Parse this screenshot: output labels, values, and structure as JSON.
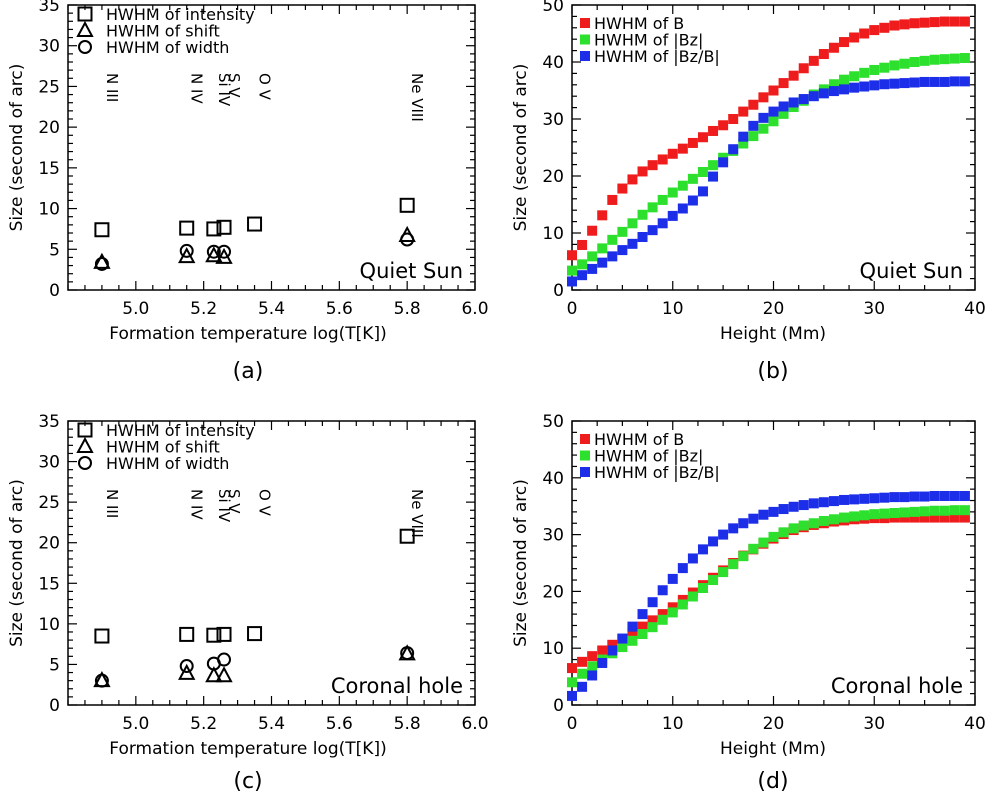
{
  "chart_data": [
    {
      "id": "a",
      "type": "scatter",
      "panel_label": "(a)",
      "xlabel": "Formation temperature log(T[K])",
      "ylabel": "Size (second of arc)",
      "xlim": [
        4.8,
        6.0
      ],
      "ylim": [
        0,
        35
      ],
      "xticks": [
        "5.0",
        "5.2",
        "5.4",
        "5.6",
        "5.8",
        "6.0"
      ],
      "yticks": [
        "0",
        "5",
        "10",
        "15",
        "20",
        "25",
        "30",
        "35"
      ],
      "annotation": "Quiet Sun",
      "legend_position": "top-left",
      "legend": [
        {
          "marker": "square",
          "label": "HWHM of intensity"
        },
        {
          "marker": "triangle",
          "label": "HWHM of shift"
        },
        {
          "marker": "circle",
          "label": "HWHM of width"
        }
      ],
      "lines": [
        {
          "label": "N III",
          "x": 4.9
        },
        {
          "label": "N IV",
          "x": 5.15
        },
        {
          "label": "Si IV",
          "x": 5.23
        },
        {
          "label": "S V",
          "x": 5.26
        },
        {
          "label": "O V",
          "x": 5.35
        },
        {
          "label": "Ne VIII",
          "x": 5.8
        }
      ],
      "series": [
        {
          "marker": "square",
          "x": [
            4.9,
            5.15,
            5.23,
            5.26,
            5.35,
            5.8
          ],
          "values": [
            7.4,
            7.6,
            7.5,
            7.7,
            8.1,
            10.4
          ]
        },
        {
          "marker": "triangle",
          "x": [
            4.9,
            5.15,
            5.23,
            5.26,
            5.8
          ],
          "values": [
            3.4,
            4.1,
            4.2,
            4.0,
            6.7
          ]
        },
        {
          "marker": "circle",
          "x": [
            4.9,
            5.15,
            5.23,
            5.26,
            5.8
          ],
          "values": [
            3.2,
            4.8,
            4.7,
            4.7,
            6.2
          ]
        }
      ]
    },
    {
      "id": "b",
      "type": "scatter",
      "panel_label": "(b)",
      "xlabel": "Height (Mm)",
      "ylabel": "Size (second of arc)",
      "xlim": [
        0,
        40
      ],
      "ylim": [
        0,
        50
      ],
      "xticks": [
        "0",
        "10",
        "20",
        "30",
        "40"
      ],
      "yticks": [
        "0",
        "10",
        "20",
        "30",
        "40",
        "50"
      ],
      "annotation": "Quiet Sun",
      "legend_position": "top-left",
      "series": [
        {
          "name": "HWHM of B",
          "color": "#ee1c1c",
          "x": [
            0,
            1,
            2,
            3,
            4,
            5,
            6,
            7,
            8,
            9,
            10,
            11,
            12,
            13,
            14,
            15,
            16,
            17,
            18,
            19,
            20,
            21,
            22,
            23,
            24,
            25,
            26,
            27,
            28,
            29,
            30,
            31,
            32,
            33,
            34,
            35,
            36,
            37,
            38,
            39
          ],
          "values": [
            6.1,
            7.9,
            10.4,
            13.1,
            15.8,
            17.8,
            19.4,
            20.8,
            21.9,
            22.9,
            23.9,
            24.8,
            25.8,
            26.8,
            27.9,
            28.9,
            30.0,
            31.3,
            32.5,
            33.8,
            35.0,
            36.3,
            37.6,
            38.9,
            40.2,
            41.4,
            42.5,
            43.5,
            44.3,
            45.0,
            45.6,
            46.0,
            46.4,
            46.6,
            46.8,
            46.9,
            47.0,
            47.1,
            47.1,
            47.1
          ]
        },
        {
          "name": "HWHM of |Bz|",
          "color": "#2ee02e",
          "x": [
            0,
            1,
            2,
            3,
            4,
            5,
            6,
            7,
            8,
            9,
            10,
            11,
            12,
            13,
            14,
            15,
            16,
            17,
            18,
            19,
            20,
            21,
            22,
            23,
            24,
            25,
            26,
            27,
            28,
            29,
            30,
            31,
            32,
            33,
            34,
            35,
            36,
            37,
            38,
            39
          ],
          "values": [
            3.4,
            4.5,
            5.9,
            7.3,
            8.8,
            10.2,
            11.7,
            13.2,
            14.5,
            15.8,
            17.1,
            18.3,
            19.5,
            20.7,
            21.9,
            23.2,
            24.4,
            25.7,
            27.0,
            28.3,
            29.6,
            30.9,
            32.1,
            33.2,
            34.3,
            35.2,
            36.1,
            36.9,
            37.5,
            38.1,
            38.6,
            39.0,
            39.4,
            39.7,
            40.0,
            40.2,
            40.4,
            40.5,
            40.6,
            40.7
          ]
        },
        {
          "name": "HWHM of |Bz/B|",
          "color": "#1c2ee8",
          "x": [
            0,
            1,
            2,
            3,
            4,
            5,
            6,
            7,
            8,
            9,
            10,
            11,
            12,
            13,
            14,
            15,
            16,
            17,
            18,
            19,
            20,
            21,
            22,
            23,
            24,
            25,
            26,
            27,
            28,
            29,
            30,
            31,
            32,
            33,
            34,
            35,
            36,
            37,
            38,
            39
          ],
          "values": [
            1.5,
            2.6,
            3.7,
            4.8,
            5.9,
            7.0,
            8.1,
            9.3,
            10.5,
            11.7,
            13.0,
            14.3,
            15.7,
            17.3,
            19.9,
            22.4,
            24.7,
            26.9,
            28.8,
            30.2,
            31.3,
            32.2,
            32.9,
            33.5,
            34.0,
            34.5,
            34.9,
            35.2,
            35.5,
            35.7,
            35.9,
            36.1,
            36.2,
            36.3,
            36.4,
            36.5,
            36.5,
            36.5,
            36.6,
            36.6
          ]
        }
      ]
    },
    {
      "id": "c",
      "type": "scatter",
      "panel_label": "(c)",
      "xlabel": "Formation temperature log(T[K])",
      "ylabel": "Size (second of arc)",
      "xlim": [
        4.8,
        6.0
      ],
      "ylim": [
        0,
        35
      ],
      "xticks": [
        "5.0",
        "5.2",
        "5.4",
        "5.6",
        "5.8",
        "6.0"
      ],
      "yticks": [
        "0",
        "5",
        "10",
        "15",
        "20",
        "25",
        "30",
        "35"
      ],
      "annotation": "Coronal hole",
      "legend_position": "top-left",
      "legend": [
        {
          "marker": "square",
          "label": "HWHM of intensity"
        },
        {
          "marker": "triangle",
          "label": "HWHM of shift"
        },
        {
          "marker": "circle",
          "label": "HWHM of width"
        }
      ],
      "lines": [
        {
          "label": "N III",
          "x": 4.9
        },
        {
          "label": "N IV",
          "x": 5.15
        },
        {
          "label": "Si IV",
          "x": 5.23
        },
        {
          "label": "S V",
          "x": 5.26
        },
        {
          "label": "O V",
          "x": 5.35
        },
        {
          "label": "Ne VIII",
          "x": 5.8
        }
      ],
      "series": [
        {
          "marker": "square",
          "x": [
            4.9,
            5.15,
            5.23,
            5.26,
            5.35,
            5.8
          ],
          "values": [
            8.5,
            8.7,
            8.6,
            8.7,
            8.8,
            20.8
          ]
        },
        {
          "marker": "triangle",
          "x": [
            4.9,
            5.15,
            5.23,
            5.26,
            5.8
          ],
          "values": [
            3.0,
            3.9,
            3.6,
            3.6,
            6.3
          ]
        },
        {
          "marker": "circle",
          "x": [
            4.9,
            5.15,
            5.23,
            5.26,
            5.8
          ],
          "values": [
            3.0,
            4.8,
            5.1,
            5.6,
            6.4
          ]
        }
      ]
    },
    {
      "id": "d",
      "type": "scatter",
      "panel_label": "(d)",
      "xlabel": "Height (Mm)",
      "ylabel": "Size (second of arc)",
      "xlim": [
        0,
        40
      ],
      "ylim": [
        0,
        50
      ],
      "xticks": [
        "0",
        "10",
        "20",
        "30",
        "40"
      ],
      "yticks": [
        "0",
        "10",
        "20",
        "30",
        "40",
        "50"
      ],
      "annotation": "Coronal hole",
      "legend_position": "top-left",
      "series": [
        {
          "name": "HWHM of B",
          "color": "#ee1c1c",
          "x": [
            0,
            1,
            2,
            3,
            4,
            5,
            6,
            7,
            8,
            9,
            10,
            11,
            12,
            13,
            14,
            15,
            16,
            17,
            18,
            19,
            20,
            21,
            22,
            23,
            24,
            25,
            26,
            27,
            28,
            29,
            30,
            31,
            32,
            33,
            34,
            35,
            36,
            37,
            38,
            39
          ],
          "values": [
            6.5,
            7.6,
            8.6,
            9.6,
            10.6,
            11.6,
            12.7,
            13.8,
            14.9,
            16.0,
            17.2,
            18.5,
            19.8,
            21.1,
            22.4,
            23.7,
            25.0,
            26.3,
            27.4,
            28.4,
            29.3,
            30.1,
            30.8,
            31.3,
            31.7,
            32.0,
            32.3,
            32.5,
            32.7,
            32.8,
            32.9,
            32.9,
            33.0,
            33.0,
            33.0,
            33.0,
            33.0,
            33.0,
            33.0,
            33.0
          ]
        },
        {
          "name": "HWHM of |Bz|",
          "color": "#2ee02e",
          "x": [
            0,
            1,
            2,
            3,
            4,
            5,
            6,
            7,
            8,
            9,
            10,
            11,
            12,
            13,
            14,
            15,
            16,
            17,
            18,
            19,
            20,
            21,
            22,
            23,
            24,
            25,
            26,
            27,
            28,
            29,
            30,
            31,
            32,
            33,
            34,
            35,
            36,
            37,
            38,
            39
          ],
          "values": [
            4.0,
            5.5,
            6.8,
            8.0,
            9.1,
            10.2,
            11.3,
            12.5,
            13.7,
            15.0,
            16.3,
            17.7,
            19.1,
            20.6,
            22.0,
            23.4,
            24.8,
            26.2,
            27.5,
            28.6,
            29.6,
            30.4,
            31.1,
            31.6,
            32.0,
            32.4,
            32.7,
            33.0,
            33.2,
            33.4,
            33.6,
            33.7,
            33.8,
            33.9,
            34.0,
            34.1,
            34.2,
            34.2,
            34.3,
            34.3
          ]
        },
        {
          "name": "HWHM of |Bz/B|",
          "color": "#1c2ee8",
          "x": [
            0,
            1,
            2,
            3,
            4,
            5,
            6,
            7,
            8,
            9,
            10,
            11,
            12,
            13,
            14,
            15,
            16,
            17,
            18,
            19,
            20,
            21,
            22,
            23,
            24,
            25,
            26,
            27,
            28,
            29,
            30,
            31,
            32,
            33,
            34,
            35,
            36,
            37,
            38,
            39
          ],
          "values": [
            1.6,
            3.2,
            5.2,
            7.4,
            9.6,
            11.7,
            13.8,
            16.0,
            18.1,
            20.2,
            22.2,
            24.1,
            25.8,
            27.4,
            28.8,
            30.0,
            31.1,
            32.0,
            32.8,
            33.5,
            34.0,
            34.5,
            34.9,
            35.2,
            35.5,
            35.7,
            35.9,
            36.1,
            36.2,
            36.3,
            36.4,
            36.5,
            36.6,
            36.6,
            36.7,
            36.7,
            36.8,
            36.8,
            36.8,
            36.8
          ]
        }
      ]
    }
  ]
}
